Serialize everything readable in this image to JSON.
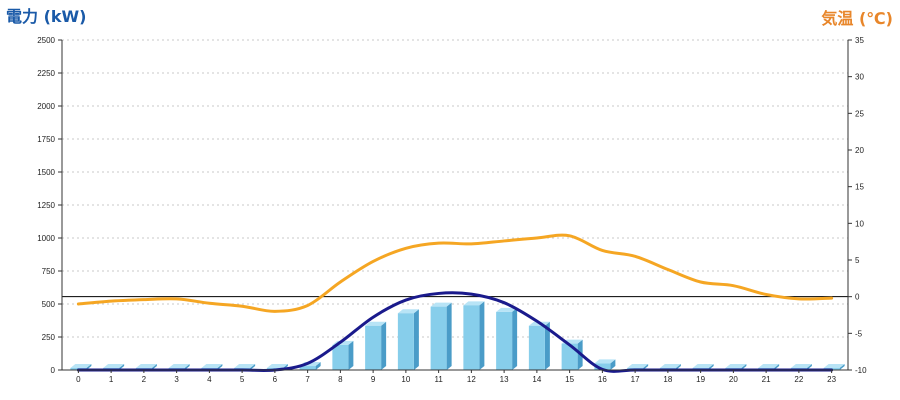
{
  "chart_data": {
    "type": "bar",
    "left_axis_title": "電力 (kW)",
    "right_axis_title": "気温 (℃)",
    "left_axis": {
      "min": 0,
      "max": 2500,
      "ticks": [
        "0",
        "250",
        "500",
        "750",
        "1000",
        "1250",
        "1500",
        "1750",
        "2000",
        "2250",
        "2500"
      ]
    },
    "right_axis": {
      "min": -10,
      "max": 35,
      "ticks": [
        "-10",
        "-5",
        "0",
        "5",
        "10",
        "15",
        "20",
        "25",
        "30",
        "35"
      ]
    },
    "categories": [
      "0",
      "1",
      "2",
      "3",
      "4",
      "5",
      "6",
      "7",
      "8",
      "9",
      "10",
      "11",
      "12",
      "13",
      "14",
      "15",
      "16",
      "17",
      "18",
      "19",
      "20",
      "21",
      "22",
      "23"
    ],
    "grid": "horizontal dashed",
    "reference_line_temperature": 0,
    "colors": {
      "left_title": "#1a5aa8",
      "right_title": "#e8862a",
      "bars": "#87ceeb",
      "bars_dark": "#4a9cc8",
      "power_line": "#1a1a8c",
      "temperature_line": "#f5a623"
    },
    "series": [
      {
        "kind": "bar",
        "axis": "left",
        "values": [
          15,
          15,
          15,
          15,
          15,
          15,
          15,
          30,
          190,
          335,
          430,
          480,
          490,
          440,
          335,
          200,
          50,
          15,
          15,
          15,
          15,
          15,
          15,
          15
        ]
      },
      {
        "kind": "line",
        "axis": "left",
        "values": [
          0,
          0,
          0,
          0,
          0,
          0,
          0,
          50,
          210,
          400,
          530,
          580,
          575,
          510,
          370,
          190,
          5,
          0,
          0,
          0,
          0,
          0,
          0,
          0
        ]
      },
      {
        "kind": "line",
        "axis": "right",
        "values": [
          -1.0,
          -0.6,
          -0.4,
          -0.3,
          -0.9,
          -1.3,
          -2.0,
          -1.2,
          2.0,
          4.8,
          6.6,
          7.3,
          7.2,
          7.6,
          8.0,
          8.3,
          6.3,
          5.5,
          3.7,
          2.0,
          1.5,
          0.3,
          -0.3,
          -0.2
        ]
      }
    ]
  }
}
